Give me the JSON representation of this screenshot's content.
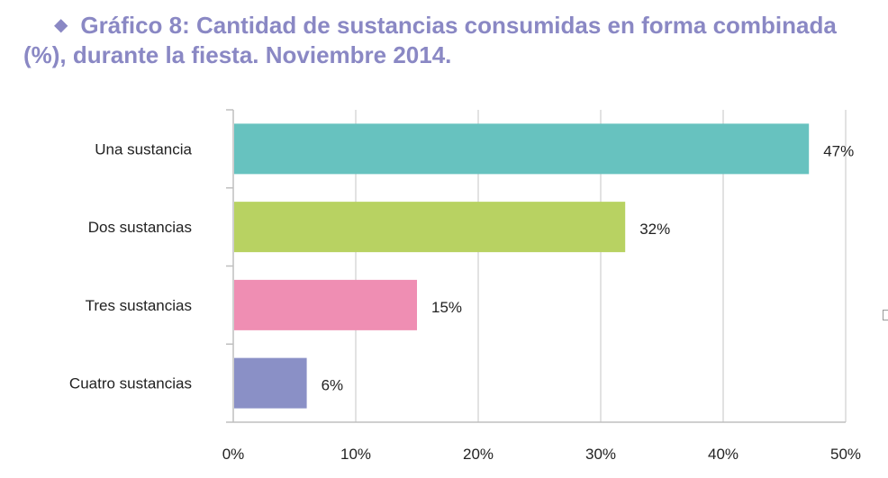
{
  "title": {
    "bullet_icon": "diamond-icon",
    "line1": "Gráfico 8: Cantidad de sustancias consumidas en forma combinada",
    "line2": "(%), durante la fiesta. Noviembre 2014."
  },
  "chart_data": {
    "type": "bar",
    "orientation": "horizontal",
    "title": "Gráfico 8: Cantidad de sustancias consumidas en forma combinada (%), durante la fiesta. Noviembre 2014.",
    "categories": [
      "Una sustancia",
      "Dos sustancias",
      "Tres sustancias",
      "Cuatro sustancias"
    ],
    "values": [
      47,
      32,
      15,
      6
    ],
    "value_labels": [
      "47%",
      "32%",
      "15%",
      "6%"
    ],
    "colors": [
      "#67c2bf",
      "#b8d262",
      "#ef8eb3",
      "#8a90c6"
    ],
    "xlim": [
      0,
      50
    ],
    "xticks": [
      0,
      10,
      20,
      30,
      40,
      50
    ],
    "xtick_labels": [
      "0%",
      "10%",
      "20%",
      "30%",
      "40%",
      "50%"
    ],
    "grid": true,
    "legend": "none",
    "xlabel": "",
    "ylabel": ""
  }
}
